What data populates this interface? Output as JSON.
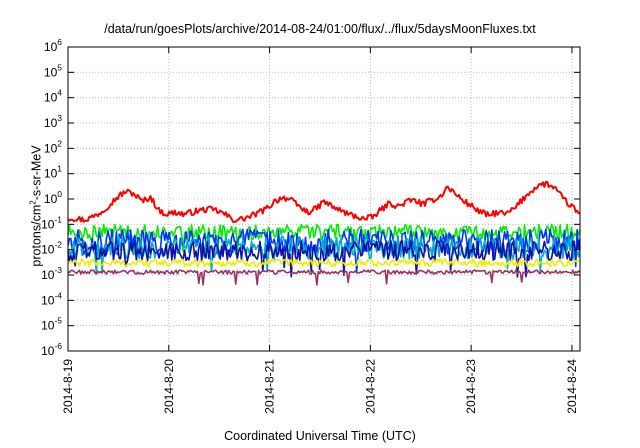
{
  "chart_data": {
    "type": "line",
    "title": "/data/run/goesPlots/archive/2014-08-24/01:00/flux/../flux/5daysMoonFluxes.txt",
    "xlabel": "Coordinated Universal Time (UTC)",
    "ylabel": {
      "prefix": "protons/cm",
      "sup": "2",
      "suffix": "-s-sr-MeV"
    },
    "y_scale": "log",
    "ylim_exponents": [
      -6,
      6
    ],
    "y_tick_exponents": [
      -6,
      -5,
      -4,
      -3,
      -2,
      -1,
      0,
      1,
      2,
      3,
      4,
      5,
      6
    ],
    "x_tick_labels": [
      "2014-8-19",
      "2014-8-20",
      "2014-8-21",
      "2014-8-22",
      "2014-8-23",
      "2014-8-24"
    ],
    "x_range_days": [
      0,
      5.08
    ],
    "grid": true,
    "legend": "none",
    "series": [
      {
        "color": "#ff0000",
        "noise": 0.12,
        "values": [
          0.18,
          0.17,
          0.15,
          0.2,
          0.3,
          0.6,
          1.2,
          2.0,
          1.6,
          0.8,
          1.2,
          0.35,
          0.25,
          0.3,
          0.25,
          0.3,
          0.35,
          0.4,
          0.35,
          0.25,
          0.15,
          0.16,
          0.2,
          0.28,
          0.4,
          0.8,
          1.2,
          0.9,
          0.5,
          0.3,
          0.4,
          0.8,
          0.5,
          0.35,
          0.25,
          0.2,
          0.16,
          0.2,
          0.4,
          0.7,
          0.5,
          0.8,
          0.9,
          0.6,
          0.9,
          1.2,
          3.0,
          1.5,
          0.8,
          0.5,
          0.3,
          0.22,
          0.3,
          0.25,
          0.4,
          0.9,
          2.0,
          3.5,
          4.0,
          2.5,
          1.0,
          0.5,
          0.25
        ]
      },
      {
        "color": "#00ee00",
        "noise": 0.3,
        "values": [
          0.05,
          0.05,
          0.05,
          0.05,
          0.05,
          0.05,
          0.05,
          0.05,
          0.05,
          0.05,
          0.05,
          0.05,
          0.05,
          0.05,
          0.05,
          0.05,
          0.05,
          0.05,
          0.05,
          0.05,
          0.05,
          0.05,
          0.05,
          0.05,
          0.05,
          0.05,
          0.05,
          0.05,
          0.05,
          0.05,
          0.05,
          0.05,
          0.05,
          0.05,
          0.05,
          0.05,
          0.05,
          0.05,
          0.05,
          0.05,
          0.05,
          0.05,
          0.05,
          0.05,
          0.05,
          0.05,
          0.05,
          0.05,
          0.05,
          0.05,
          0.05,
          0.05,
          0.05,
          0.05,
          0.05,
          0.05,
          0.05,
          0.05,
          0.05,
          0.05,
          0.05,
          0.05,
          0.05
        ]
      },
      {
        "color": "#0033ff",
        "noise": 0.5,
        "values": [
          0.02,
          0.02,
          0.02,
          0.02,
          0.02,
          0.02,
          0.02,
          0.02,
          0.02,
          0.02,
          0.02,
          0.02,
          0.02,
          0.02,
          0.02,
          0.02,
          0.02,
          0.02,
          0.02,
          0.02,
          0.02,
          0.02,
          0.02,
          0.02,
          0.02,
          0.02,
          0.02,
          0.02,
          0.02,
          0.02,
          0.02,
          0.02,
          0.02,
          0.02,
          0.02,
          0.02,
          0.02,
          0.02,
          0.02,
          0.02,
          0.02,
          0.02,
          0.02,
          0.02,
          0.02,
          0.02,
          0.02,
          0.02,
          0.02,
          0.02,
          0.02,
          0.02,
          0.02,
          0.02,
          0.02,
          0.02,
          0.02,
          0.02,
          0.02,
          0.02,
          0.02,
          0.02,
          0.02
        ]
      },
      {
        "color": "#00aacc",
        "noise": 0.45,
        "values": [
          0.012,
          0.012,
          0.012,
          0.012,
          0.012,
          0.012,
          0.012,
          0.012,
          0.012,
          0.012,
          0.012,
          0.012,
          0.012,
          0.012,
          0.012,
          0.012,
          0.012,
          0.012,
          0.012,
          0.012,
          0.012,
          0.012,
          0.012,
          0.012,
          0.012,
          0.012,
          0.012,
          0.012,
          0.012,
          0.012,
          0.012,
          0.012,
          0.012,
          0.012,
          0.012,
          0.012,
          0.012,
          0.012,
          0.012,
          0.012,
          0.012,
          0.012,
          0.012,
          0.012,
          0.012,
          0.012,
          0.012,
          0.012,
          0.012,
          0.012,
          0.012,
          0.012,
          0.012,
          0.012,
          0.012,
          0.012,
          0.012,
          0.012,
          0.012,
          0.012,
          0.012,
          0.012,
          0.012
        ]
      },
      {
        "color": "#1010aa",
        "noise": 0.4,
        "values": [
          0.009,
          0.009,
          0.009,
          0.009,
          0.009,
          0.009,
          0.009,
          0.009,
          0.009,
          0.009,
          0.009,
          0.009,
          0.009,
          0.009,
          0.009,
          0.009,
          0.009,
          0.009,
          0.009,
          0.009,
          0.009,
          0.009,
          0.009,
          0.009,
          0.009,
          0.009,
          0.009,
          0.009,
          0.009,
          0.009,
          0.009,
          0.009,
          0.009,
          0.009,
          0.009,
          0.009,
          0.009,
          0.009,
          0.009,
          0.009,
          0.009,
          0.009,
          0.009,
          0.009,
          0.009,
          0.009,
          0.009,
          0.009,
          0.009,
          0.009,
          0.009,
          0.009,
          0.009,
          0.009,
          0.009,
          0.009,
          0.009,
          0.009,
          0.009,
          0.009,
          0.009,
          0.009,
          0.009
        ]
      },
      {
        "color": "#eeee00",
        "noise": 0.15,
        "values": [
          0.003,
          0.003,
          0.003,
          0.003,
          0.003,
          0.003,
          0.003,
          0.003,
          0.003,
          0.003,
          0.003,
          0.003,
          0.003,
          0.003,
          0.003,
          0.003,
          0.003,
          0.003,
          0.003,
          0.003,
          0.003,
          0.003,
          0.003,
          0.003,
          0.003,
          0.003,
          0.003,
          0.003,
          0.003,
          0.003,
          0.003,
          0.003,
          0.003,
          0.003,
          0.003,
          0.003,
          0.003,
          0.003,
          0.003,
          0.003,
          0.003,
          0.003,
          0.003,
          0.003,
          0.003,
          0.003,
          0.003,
          0.003,
          0.003,
          0.003,
          0.003,
          0.003,
          0.003,
          0.003,
          0.003,
          0.003,
          0.003,
          0.003,
          0.003,
          0.003,
          0.003,
          0.003,
          0.003
        ]
      },
      {
        "color": "#993366",
        "noise": 0.08,
        "values": [
          0.0013,
          0.0013,
          0.0013,
          0.0013,
          0.0013,
          0.0013,
          0.0013,
          0.0013,
          0.0013,
          0.0013,
          0.0013,
          0.0013,
          0.0013,
          0.0013,
          0.0013,
          0.0013,
          0.0013,
          0.0013,
          0.0013,
          0.0013,
          0.0013,
          0.0013,
          0.0013,
          0.0013,
          0.0013,
          0.0013,
          0.0013,
          0.0013,
          0.0013,
          0.0013,
          0.0013,
          0.0013,
          0.0013,
          0.0013,
          0.0013,
          0.0013,
          0.0013,
          0.0013,
          0.0013,
          0.0013,
          0.0013,
          0.0013,
          0.0013,
          0.0013,
          0.0013,
          0.0013,
          0.0013,
          0.0013,
          0.0013,
          0.0013,
          0.0013,
          0.0013,
          0.0013,
          0.0013,
          0.0013,
          0.0013,
          0.0013,
          0.0013,
          0.0013,
          0.0013,
          0.0013,
          0.0013,
          0.0013
        ]
      }
    ]
  }
}
